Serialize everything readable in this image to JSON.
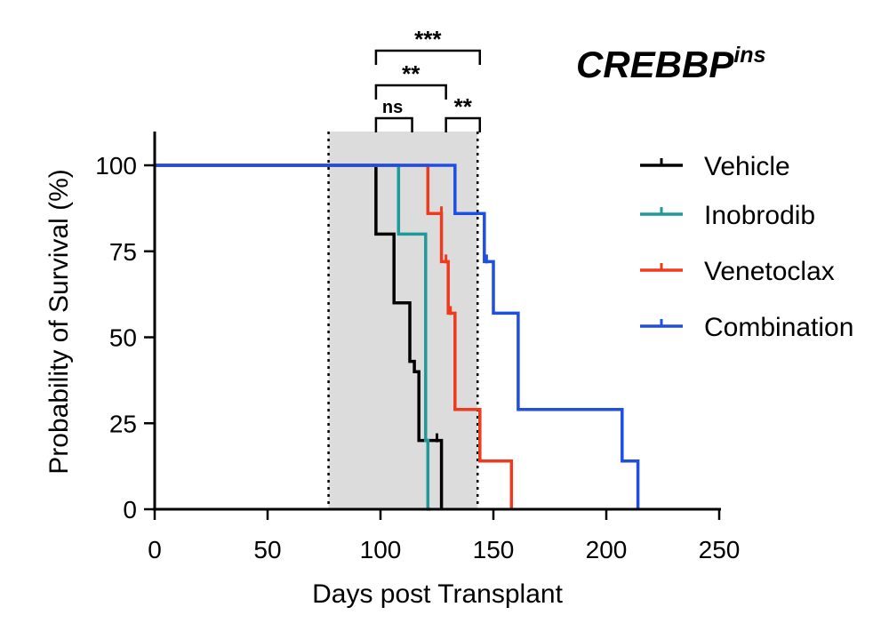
{
  "chart_data": {
    "type": "line",
    "title": "CREBBP",
    "title_superscript": "ins",
    "xlabel": "Days post Transplant",
    "ylabel": "Probability of Survival (%)",
    "xlim": [
      0,
      250
    ],
    "ylim": [
      0,
      110
    ],
    "x_ticks": [
      0,
      50,
      100,
      150,
      200,
      250
    ],
    "y_ticks": [
      0,
      25,
      50,
      75,
      100
    ],
    "grid": false,
    "legend_position": "right",
    "shaded_region": {
      "x": [
        77,
        143
      ],
      "color": "#dcdcdc",
      "border": "dotted"
    },
    "series": [
      {
        "name": "Vehicle",
        "color": "#000000",
        "steps": [
          [
            0,
            100
          ],
          [
            98,
            100
          ],
          [
            98,
            80
          ],
          [
            106,
            80
          ],
          [
            106,
            60
          ],
          [
            113,
            60
          ],
          [
            113,
            43
          ],
          [
            115,
            43
          ],
          [
            115,
            40
          ],
          [
            117,
            40
          ],
          [
            117,
            20
          ],
          [
            127,
            20
          ],
          [
            127,
            0
          ]
        ],
        "censor_marks": [
          [
            125,
            20
          ]
        ]
      },
      {
        "name": "Inobrodib",
        "color": "#1f9a9a",
        "steps": [
          [
            0,
            100
          ],
          [
            108,
            100
          ],
          [
            108,
            80
          ],
          [
            120,
            80
          ],
          [
            120,
            20
          ],
          [
            121,
            20
          ],
          [
            121,
            0
          ],
          [
            122,
            0
          ]
        ],
        "censor_marks": []
      },
      {
        "name": "Venetoclax",
        "color": "#ee3a1e",
        "steps": [
          [
            0,
            100
          ],
          [
            121,
            100
          ],
          [
            121,
            86
          ],
          [
            127,
            86
          ],
          [
            127,
            72
          ],
          [
            130,
            72
          ],
          [
            130,
            57
          ],
          [
            133,
            57
          ],
          [
            133,
            29
          ],
          [
            144,
            29
          ],
          [
            144,
            14
          ],
          [
            158,
            14
          ],
          [
            158,
            0
          ]
        ],
        "censor_marks": [
          [
            127,
            86
          ],
          [
            129,
            72
          ],
          [
            131,
            57
          ]
        ]
      },
      {
        "name": "Combination",
        "color": "#1f4fe0",
        "steps": [
          [
            0,
            100
          ],
          [
            133,
            100
          ],
          [
            133,
            86
          ],
          [
            146,
            86
          ],
          [
            146,
            72
          ],
          [
            150,
            72
          ],
          [
            150,
            57
          ],
          [
            161,
            57
          ],
          [
            161,
            29
          ],
          [
            207,
            29
          ],
          [
            207,
            14
          ],
          [
            214,
            14
          ],
          [
            214,
            0
          ]
        ],
        "censor_marks": [
          [
            147,
            72
          ]
        ]
      }
    ],
    "annotations": [
      {
        "text": "ns",
        "x1": 98,
        "x2": 114,
        "level": 1
      },
      {
        "text": "**",
        "x1": 129,
        "x2": 144,
        "level": 1
      },
      {
        "text": "**",
        "x1": 98,
        "x2": 129,
        "level": 2
      },
      {
        "text": "***",
        "x1": 98,
        "x2": 144,
        "level": 3
      }
    ]
  }
}
